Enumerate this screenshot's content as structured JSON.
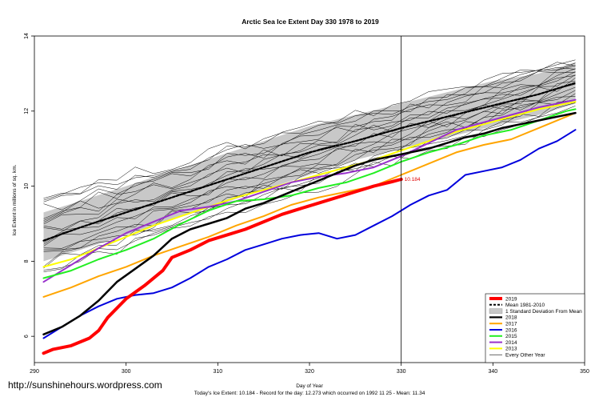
{
  "chart_data": {
    "type": "line",
    "title": "Arctic Sea Ice Extent Day 330 1978 to 2019",
    "xlabel": "Day of Year",
    "ylabel": "Ice Extent in millions of sq. km.",
    "xlim": [
      290,
      350
    ],
    "ylim": [
      5.3,
      14
    ],
    "xticks": [
      290,
      300,
      310,
      320,
      330,
      340,
      350
    ],
    "yticks": [
      6,
      8,
      10,
      12,
      14
    ],
    "grid": false,
    "legend_position": "bottom-right",
    "current_day_marker": 330,
    "annotation": {
      "x": 330,
      "y": 10.184,
      "text": "10.184"
    },
    "std_band": {
      "x": [
        291,
        295,
        300,
        305,
        310,
        315,
        320,
        325,
        330,
        335,
        340,
        345,
        349
      ],
      "lower": [
        8.0,
        8.3,
        8.7,
        9.1,
        9.5,
        9.9,
        10.3,
        10.7,
        11.0,
        11.3,
        11.6,
        11.9,
        12.2
      ],
      "upper": [
        9.3,
        9.6,
        10.0,
        10.4,
        10.8,
        11.2,
        11.6,
        11.9,
        12.2,
        12.5,
        12.8,
        13.0,
        13.3
      ]
    },
    "series": [
      {
        "name": "2019",
        "color": "#ff0000",
        "width": 4,
        "dash": "",
        "x": [
          291,
          292,
          294,
          296,
          297,
          298,
          300,
          302,
          304,
          305,
          307,
          309,
          311,
          313,
          315,
          317,
          319,
          321,
          323,
          325,
          327,
          329,
          330
        ],
        "y": [
          5.55,
          5.65,
          5.75,
          5.95,
          6.15,
          6.5,
          7.0,
          7.35,
          7.75,
          8.1,
          8.3,
          8.55,
          8.7,
          8.85,
          9.05,
          9.25,
          9.4,
          9.55,
          9.7,
          9.85,
          10.0,
          10.12,
          10.184
        ]
      },
      {
        "name": "Mean 1981-2010",
        "color": "#000000",
        "width": 2.2,
        "dash": "3,2",
        "x": [
          291,
          295,
          300,
          305,
          310,
          315,
          320,
          325,
          330,
          335,
          340,
          345,
          349
        ],
        "y": [
          8.55,
          8.9,
          9.3,
          9.7,
          10.1,
          10.5,
          10.9,
          11.2,
          11.55,
          11.85,
          12.15,
          12.45,
          12.75
        ]
      },
      {
        "name": "2018",
        "color": "#000000",
        "width": 2.5,
        "dash": "",
        "x": [
          291,
          293,
          295,
          297,
          299,
          301,
          303,
          305,
          307,
          309,
          311,
          313,
          315,
          317,
          319,
          321,
          323,
          325,
          327,
          329,
          331,
          333,
          335,
          337,
          339,
          341,
          343,
          345,
          347,
          349
        ],
        "y": [
          6.05,
          6.25,
          6.55,
          6.95,
          7.45,
          7.8,
          8.15,
          8.6,
          8.85,
          9.0,
          9.15,
          9.4,
          9.55,
          9.75,
          9.95,
          10.15,
          10.35,
          10.55,
          10.7,
          10.8,
          10.9,
          11.0,
          11.15,
          11.3,
          11.4,
          11.55,
          11.65,
          11.75,
          11.85,
          11.95
        ]
      },
      {
        "name": "2017",
        "color": "#ffa500",
        "width": 2,
        "dash": "",
        "x": [
          291,
          294,
          297,
          300,
          303,
          306,
          309,
          312,
          315,
          318,
          321,
          324,
          327,
          330,
          333,
          336,
          339,
          342,
          345,
          348,
          349
        ],
        "y": [
          7.05,
          7.3,
          7.6,
          7.85,
          8.15,
          8.4,
          8.65,
          8.95,
          9.2,
          9.5,
          9.7,
          9.85,
          10.0,
          10.3,
          10.6,
          10.9,
          11.1,
          11.25,
          11.55,
          11.85,
          11.95
        ]
      },
      {
        "name": "2016",
        "color": "#0000dd",
        "width": 2,
        "dash": "",
        "x": [
          291,
          293,
          295,
          297,
          299,
          301,
          303,
          305,
          307,
          309,
          311,
          313,
          315,
          317,
          319,
          321,
          323,
          325,
          327,
          329,
          331,
          333,
          335,
          337,
          339,
          341,
          343,
          345,
          347,
          349
        ],
        "y": [
          5.95,
          6.25,
          6.55,
          6.8,
          7.0,
          7.1,
          7.15,
          7.3,
          7.55,
          7.85,
          8.05,
          8.3,
          8.45,
          8.6,
          8.7,
          8.75,
          8.6,
          8.7,
          8.95,
          9.2,
          9.5,
          9.75,
          9.9,
          10.3,
          10.4,
          10.5,
          10.7,
          11.0,
          11.2,
          11.5
        ]
      },
      {
        "name": "2015",
        "color": "#22ee22",
        "width": 2,
        "dash": "",
        "x": [
          291,
          294,
          297,
          300,
          303,
          306,
          309,
          312,
          315,
          318,
          321,
          324,
          327,
          330,
          333,
          336,
          339,
          342,
          345,
          348,
          349
        ],
        "y": [
          7.55,
          7.75,
          8.05,
          8.3,
          8.6,
          9.0,
          9.35,
          9.6,
          9.65,
          9.75,
          9.95,
          10.1,
          10.35,
          10.65,
          10.9,
          11.1,
          11.35,
          11.5,
          11.75,
          12.0,
          12.05
        ]
      },
      {
        "name": "2014",
        "color": "#9932cc",
        "width": 2,
        "dash": "",
        "x": [
          291,
          294,
          297,
          300,
          303,
          306,
          309,
          312,
          315,
          318,
          321,
          324,
          327,
          330,
          333,
          336,
          339,
          342,
          345,
          348,
          349
        ],
        "y": [
          7.45,
          7.9,
          8.35,
          8.75,
          9.05,
          9.35,
          9.45,
          9.6,
          9.85,
          10.1,
          10.25,
          10.35,
          10.5,
          10.8,
          11.15,
          11.5,
          11.7,
          11.9,
          12.1,
          12.25,
          12.3
        ]
      },
      {
        "name": "2013",
        "color": "#ffff00",
        "width": 2,
        "dash": "",
        "x": [
          291,
          294,
          297,
          300,
          303,
          306,
          309,
          312,
          315,
          318,
          321,
          324,
          327,
          330,
          333,
          336,
          339,
          342,
          345,
          348,
          349
        ],
        "y": [
          7.85,
          8.05,
          8.35,
          8.65,
          8.95,
          9.2,
          9.45,
          9.7,
          9.9,
          10.1,
          10.3,
          10.5,
          10.7,
          10.95,
          11.2,
          11.45,
          11.65,
          11.85,
          12.05,
          12.2,
          12.25
        ]
      }
    ],
    "legend": [
      {
        "label": "2019",
        "color": "#ff0000",
        "kind": "line",
        "width": 4
      },
      {
        "label": "Mean 1981-2010",
        "color": "#000000",
        "kind": "dash",
        "width": 2
      },
      {
        "label": "1 Standard Deviation From Mean",
        "color": "#c8c8c8",
        "kind": "box",
        "width": 0
      },
      {
        "label": "2018",
        "color": "#000000",
        "kind": "line",
        "width": 2.2
      },
      {
        "label": "2017",
        "color": "#ffa500",
        "kind": "line",
        "width": 2
      },
      {
        "label": "2016",
        "color": "#0000dd",
        "kind": "line",
        "width": 2
      },
      {
        "label": "2015",
        "color": "#22ee22",
        "kind": "line",
        "width": 2
      },
      {
        "label": "2014",
        "color": "#9932cc",
        "kind": "line",
        "width": 2
      },
      {
        "label": "2013",
        "color": "#ffff00",
        "kind": "line",
        "width": 2
      },
      {
        "label": "Every Other Year",
        "color": "#000000",
        "kind": "line",
        "width": 0.6
      }
    ]
  },
  "footer": "Today's Ice Extent: 10.184  - Record for the day: 12.273 which occurred on 1992 11 25  - Mean: 11.34",
  "watermark": "http://sunshinehours.wordpress.com"
}
